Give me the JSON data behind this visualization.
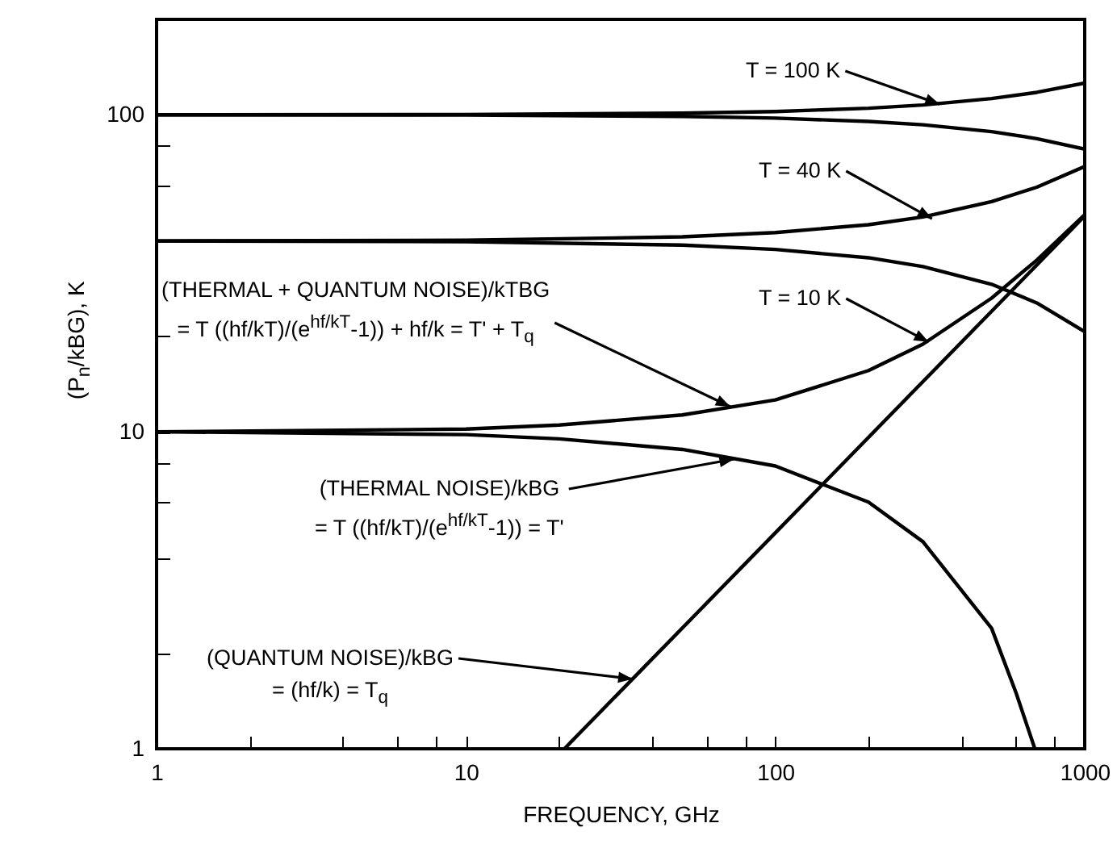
{
  "chart_data": {
    "type": "line",
    "xlabel": "FREQUENCY, GHz",
    "ylabel": "(P$_{n}$/kBG), K",
    "log": "xy",
    "grid": false,
    "marker": "none",
    "line_style": "solid",
    "xlim": [
      1,
      1000
    ],
    "ylim": [
      1,
      200
    ],
    "xticks": [
      1,
      {
        "value": 2,
        "label": null
      },
      {
        "value": 4,
        "label": null
      },
      {
        "value": 6,
        "label": null
      },
      {
        "value": 8,
        "label": null
      },
      10,
      {
        "value": 20,
        "label": null
      },
      {
        "value": 40,
        "label": null
      },
      {
        "value": 60,
        "label": null
      },
      {
        "value": 80,
        "label": null
      },
      100,
      {
        "value": 200,
        "label": null
      },
      {
        "value": 400,
        "label": null
      },
      {
        "value": 600,
        "label": null
      },
      {
        "value": 800,
        "label": null
      },
      1000
    ],
    "yticks": [
      1,
      {
        "value": 2,
        "label": null
      },
      {
        "value": 4,
        "label": null
      },
      {
        "value": 6,
        "label": null
      },
      {
        "value": 8,
        "label": null
      },
      10,
      {
        "value": 20,
        "label": null
      },
      {
        "value": 40,
        "label": null
      },
      {
        "value": 60,
        "label": null
      },
      {
        "value": 80,
        "label": null
      },
      100,
      {
        "value": 200,
        "label": null
      }
    ],
    "series": [
      {
        "color": "#000000",
        "x": [
          1,
          10,
          50,
          100,
          200,
          300,
          500,
          700,
          1000
        ],
        "values": [
          100,
          100.2,
          101.2,
          102.4,
          104.9,
          107.4,
          112.5,
          117.7,
          125.9
        ]
      },
      {
        "color": "#000000",
        "x": [
          1,
          10,
          50,
          100,
          200,
          300,
          500,
          700,
          1000
        ],
        "values": [
          100,
          99.8,
          98.8,
          97.6,
          95.3,
          93.0,
          88.5,
          84.1,
          77.9
        ]
      },
      {
        "color": "#000000",
        "x": [
          1,
          10,
          50,
          100,
          200,
          300,
          500,
          700,
          1000
        ],
        "values": [
          40,
          40.2,
          41.2,
          42.5,
          45.0,
          47.6,
          53.2,
          59.1,
          68.7
        ]
      },
      {
        "color": "#000000",
        "x": [
          1,
          10,
          50,
          100,
          200,
          300,
          500,
          700,
          1000
        ],
        "values": [
          40,
          39.8,
          38.8,
          37.6,
          35.4,
          33.2,
          29.2,
          25.5,
          20.7
        ]
      },
      {
        "color": "#000000",
        "x": [
          1,
          10,
          20,
          50,
          100,
          200,
          300,
          500,
          700,
          1000
        ],
        "values": [
          10,
          10.2,
          10.5,
          11.3,
          12.6,
          15.6,
          18.9,
          26.4,
          34.8,
          48.4
        ]
      },
      {
        "color": "#000000",
        "x": [
          1,
          10,
          20,
          50,
          100,
          200,
          300,
          500,
          600,
          690
        ],
        "values": [
          10,
          9.8,
          9.5,
          8.8,
          7.8,
          6.0,
          4.5,
          2.4,
          1.5,
          1.0
        ]
      },
      {
        "color": "#000000",
        "x": [
          20.8,
          100,
          1000
        ],
        "values": [
          1,
          4.8,
          48
        ]
      }
    ],
    "annotations": [
      {
        "text": "T = 100 K",
        "x": 340,
        "y": 108
      },
      {
        "text": "T = 40 K",
        "x": 321,
        "y": 47
      },
      {
        "text": "T = 10 K",
        "x": 313,
        "y": 19.2
      },
      {
        "text": "(THERMAL + QUANTUM NOISE)/kTBG\n= T ((hf/kT)/(e$^{hf/kT}$-1)) + hf/k = T' + T$_{q}$",
        "x": 71.5,
        "y": 12
      },
      {
        "text": "(THERMAL NOISE)/kBG\n= T ((hf/kT)/(e$^{hf/kT}$-1)) = T'",
        "x": 73.5,
        "y": 8.2
      },
      {
        "text": "(QUANTUM NOISE)/kBG\n= (hf/k) = T$_{q}$",
        "x": 34.6,
        "y": 1.66
      }
    ]
  }
}
